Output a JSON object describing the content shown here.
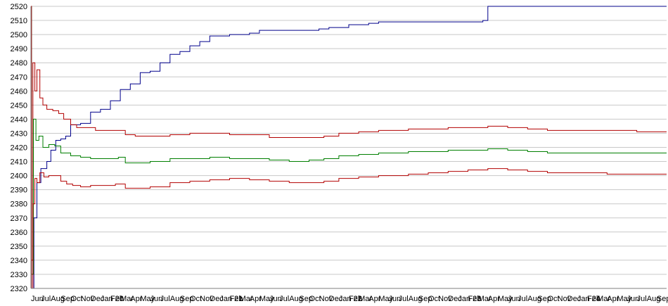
{
  "chart_data": {
    "type": "line",
    "title": "",
    "xlabel": "",
    "ylabel": "",
    "ylim": [
      2320,
      2520
    ],
    "y_ticks": [
      2320,
      2330,
      2340,
      2350,
      2360,
      2370,
      2380,
      2390,
      2400,
      2410,
      2420,
      2430,
      2440,
      2450,
      2460,
      2470,
      2480,
      2490,
      2500,
      2510,
      2520
    ],
    "grid": true,
    "x_tick_labels": [
      "Jun",
      "Jul",
      "Aug",
      "Sep",
      "Oct",
      "Nov",
      "Dec",
      "Jan 20",
      "Feb",
      "Mar",
      "Apr",
      "May",
      "Jun",
      "Jul",
      "Aug",
      "Sep",
      "Oct",
      "Nov",
      "Dec",
      "Jan 21",
      "Feb",
      "Mar",
      "Apr",
      "May",
      "Jun",
      "Jul",
      "Aug",
      "Sep",
      "Oct",
      "Nov",
      "Dec",
      "Jan 22",
      "Feb",
      "Mar",
      "Apr",
      "May",
      "Jun",
      "Jul",
      "Aug",
      "Sep",
      "Oct",
      "Nov",
      "Dec",
      "Jan 23",
      "Feb",
      "Mar",
      "Apr",
      "May",
      "Jun",
      "Jul",
      "Aug",
      "Sep",
      "Oct",
      "Nov",
      "Dec",
      "Jan 24",
      "Feb",
      "Mar",
      "Apr",
      "May",
      "Jun",
      "Jul",
      "Aug",
      "Sep"
    ],
    "x_months": 64,
    "series": [
      {
        "color": "#00008b",
        "points": [
          [
            0,
            2520
          ],
          [
            0.05,
            2320
          ],
          [
            0.3,
            2370
          ],
          [
            0.6,
            2395
          ],
          [
            1.0,
            2405
          ],
          [
            1.6,
            2410
          ],
          [
            2.0,
            2418
          ],
          [
            2.5,
            2425
          ],
          [
            3.0,
            2426
          ],
          [
            3.5,
            2428
          ],
          [
            4.0,
            2436
          ],
          [
            5.0,
            2437
          ],
          [
            6.0,
            2445
          ],
          [
            7.0,
            2447
          ],
          [
            8.0,
            2453
          ],
          [
            9.0,
            2461
          ],
          [
            10.0,
            2465
          ],
          [
            11.0,
            2473
          ],
          [
            12.0,
            2474
          ],
          [
            13.0,
            2480
          ],
          [
            14.0,
            2486
          ],
          [
            15.0,
            2488
          ],
          [
            16.0,
            2492
          ],
          [
            17.0,
            2495
          ],
          [
            18.0,
            2499
          ],
          [
            20.0,
            2500
          ],
          [
            22.0,
            2501
          ],
          [
            23.0,
            2503
          ],
          [
            26.0,
            2503
          ],
          [
            29.0,
            2504
          ],
          [
            30.0,
            2505
          ],
          [
            32.0,
            2507
          ],
          [
            34.0,
            2508
          ],
          [
            35.0,
            2509
          ],
          [
            40.0,
            2509
          ],
          [
            45.0,
            2509
          ],
          [
            45.5,
            2510
          ],
          [
            46.0,
            2520
          ],
          [
            52.0,
            2520
          ],
          [
            58.0,
            2520
          ],
          [
            64.0,
            2520
          ]
        ]
      },
      {
        "color": "#b20000",
        "points": [
          [
            0,
            2520
          ],
          [
            0.05,
            2340
          ],
          [
            0.2,
            2480
          ],
          [
            0.4,
            2460
          ],
          [
            0.6,
            2475
          ],
          [
            0.9,
            2455
          ],
          [
            1.2,
            2450
          ],
          [
            1.6,
            2447
          ],
          [
            2.2,
            2446
          ],
          [
            2.8,
            2444
          ],
          [
            3.3,
            2440
          ],
          [
            4.0,
            2436
          ],
          [
            4.6,
            2434
          ],
          [
            5.5,
            2434
          ],
          [
            6.5,
            2432
          ],
          [
            7.5,
            2432
          ],
          [
            8.8,
            2432
          ],
          [
            9.5,
            2429
          ],
          [
            10.5,
            2428
          ],
          [
            12.0,
            2428
          ],
          [
            14.0,
            2429
          ],
          [
            16.0,
            2430
          ],
          [
            18.0,
            2430
          ],
          [
            20.0,
            2429
          ],
          [
            22.0,
            2429
          ],
          [
            24.0,
            2427
          ],
          [
            26.0,
            2427
          ],
          [
            28.0,
            2427
          ],
          [
            29.5,
            2428
          ],
          [
            31.0,
            2430
          ],
          [
            33.0,
            2431
          ],
          [
            35.0,
            2432
          ],
          [
            38.0,
            2433
          ],
          [
            40.0,
            2433
          ],
          [
            42.0,
            2434
          ],
          [
            44.0,
            2434
          ],
          [
            46.0,
            2435
          ],
          [
            48.0,
            2434
          ],
          [
            50.0,
            2433
          ],
          [
            52.0,
            2432
          ],
          [
            55.0,
            2432
          ],
          [
            58.0,
            2432
          ],
          [
            61.0,
            2431
          ],
          [
            64.0,
            2431
          ]
        ]
      },
      {
        "color": "#007f00",
        "points": [
          [
            0,
            2520
          ],
          [
            0.05,
            2330
          ],
          [
            0.25,
            2440
          ],
          [
            0.5,
            2425
          ],
          [
            0.8,
            2428
          ],
          [
            1.2,
            2420
          ],
          [
            1.8,
            2422
          ],
          [
            2.4,
            2421
          ],
          [
            3.0,
            2416
          ],
          [
            4.0,
            2414
          ],
          [
            5.0,
            2413
          ],
          [
            6.0,
            2412
          ],
          [
            7.0,
            2412
          ],
          [
            8.8,
            2413
          ],
          [
            9.5,
            2409
          ],
          [
            10.5,
            2409
          ],
          [
            12.0,
            2410
          ],
          [
            14.0,
            2412
          ],
          [
            16.0,
            2412
          ],
          [
            18.0,
            2413
          ],
          [
            20.0,
            2412
          ],
          [
            22.0,
            2412
          ],
          [
            24.0,
            2411
          ],
          [
            26.0,
            2410
          ],
          [
            28.0,
            2411
          ],
          [
            29.5,
            2412
          ],
          [
            31.0,
            2414
          ],
          [
            33.0,
            2415
          ],
          [
            35.0,
            2416
          ],
          [
            38.0,
            2417
          ],
          [
            40.0,
            2417
          ],
          [
            42.0,
            2418
          ],
          [
            44.0,
            2418
          ],
          [
            46.0,
            2419
          ],
          [
            48.0,
            2418
          ],
          [
            50.0,
            2417
          ],
          [
            52.0,
            2416
          ],
          [
            55.0,
            2416
          ],
          [
            58.0,
            2416
          ],
          [
            61.0,
            2416
          ],
          [
            64.0,
            2416
          ]
        ]
      },
      {
        "color": "#b20000",
        "points": [
          [
            0,
            2520
          ],
          [
            0.05,
            2320
          ],
          [
            0.2,
            2380
          ],
          [
            0.4,
            2398
          ],
          [
            0.6,
            2395
          ],
          [
            0.9,
            2402
          ],
          [
            1.3,
            2399
          ],
          [
            1.8,
            2400
          ],
          [
            2.4,
            2400
          ],
          [
            3.0,
            2396
          ],
          [
            3.6,
            2394
          ],
          [
            4.2,
            2393
          ],
          [
            5.0,
            2392
          ],
          [
            6.0,
            2393
          ],
          [
            7.0,
            2393
          ],
          [
            8.5,
            2394
          ],
          [
            9.5,
            2391
          ],
          [
            10.5,
            2391
          ],
          [
            12.0,
            2392
          ],
          [
            14.0,
            2395
          ],
          [
            16.0,
            2396
          ],
          [
            18.0,
            2397
          ],
          [
            20.0,
            2398
          ],
          [
            22.0,
            2397
          ],
          [
            24.0,
            2396
          ],
          [
            26.0,
            2395
          ],
          [
            28.0,
            2395
          ],
          [
            29.5,
            2396
          ],
          [
            31.0,
            2398
          ],
          [
            33.0,
            2399
          ],
          [
            35.0,
            2400
          ],
          [
            38.0,
            2401
          ],
          [
            40.0,
            2402
          ],
          [
            42.0,
            2403
          ],
          [
            44.0,
            2404
          ],
          [
            46.0,
            2405
          ],
          [
            48.0,
            2404
          ],
          [
            50.0,
            2403
          ],
          [
            52.0,
            2402
          ],
          [
            55.0,
            2402
          ],
          [
            58.0,
            2401
          ],
          [
            61.0,
            2401
          ],
          [
            64.0,
            2401
          ]
        ]
      }
    ]
  }
}
